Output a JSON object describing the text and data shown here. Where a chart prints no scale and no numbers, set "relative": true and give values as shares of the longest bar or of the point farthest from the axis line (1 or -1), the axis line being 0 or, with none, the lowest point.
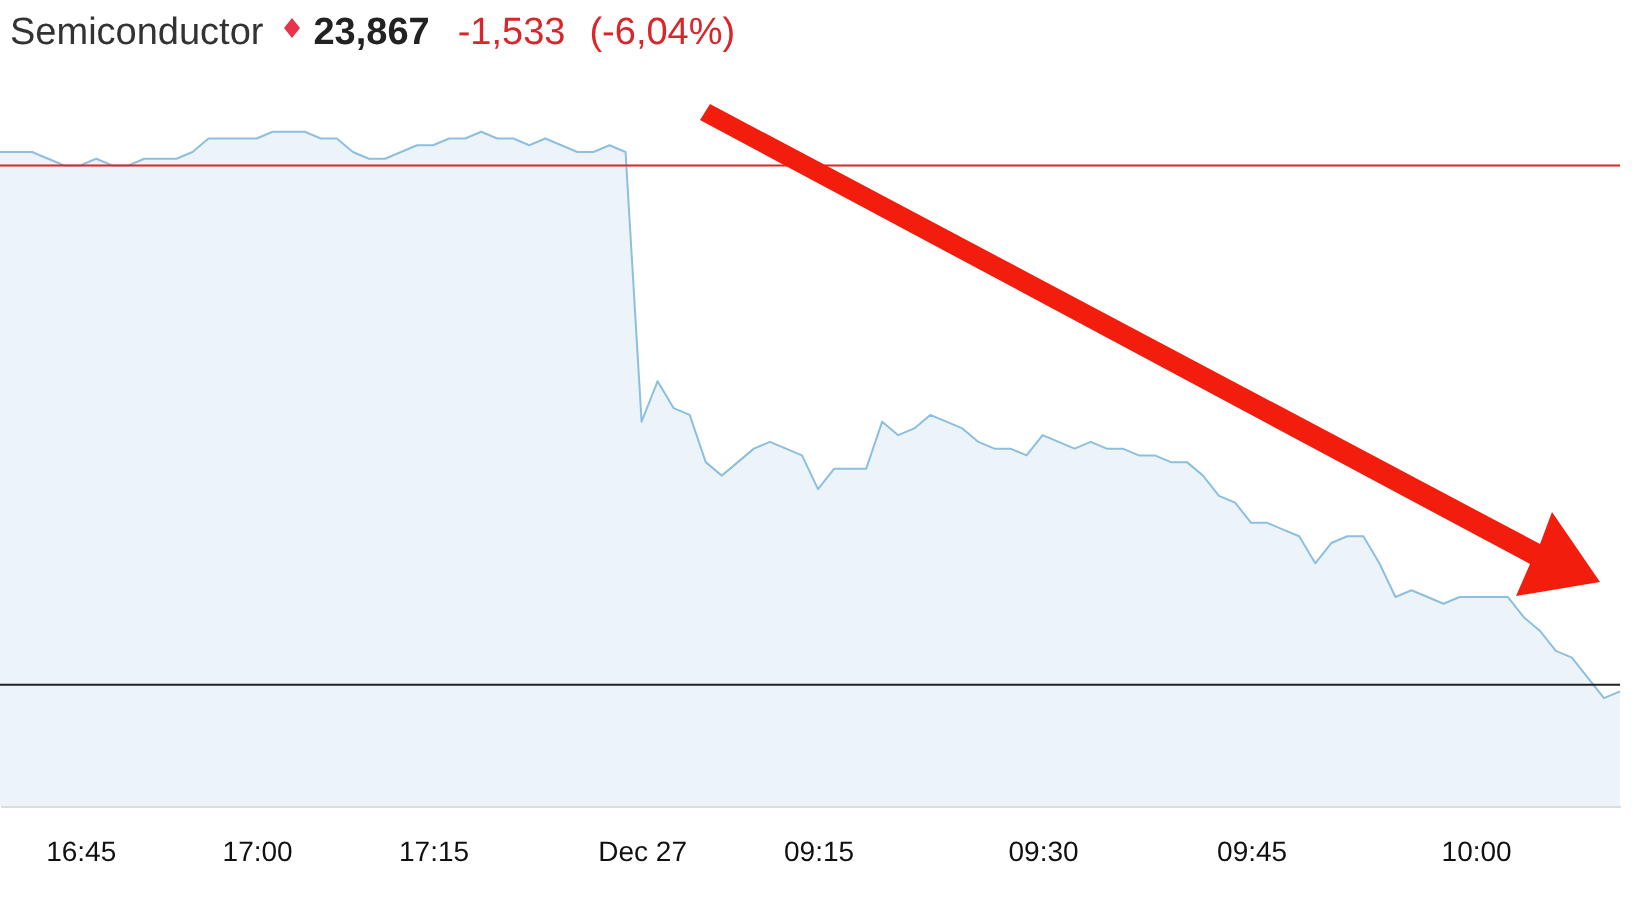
{
  "chart_data": {
    "type": "area",
    "title": "Semiconductor",
    "annotations": [
      "23,867",
      "-1,533",
      "(-6,04%)"
    ],
    "categories": [
      null,
      null,
      null,
      null,
      null,
      "16:45",
      null,
      null,
      null,
      null,
      null,
      null,
      null,
      null,
      null,
      null,
      "17:00",
      null,
      null,
      null,
      null,
      null,
      null,
      null,
      null,
      null,
      null,
      "17:15",
      null,
      null,
      null,
      null,
      null,
      null,
      null,
      null,
      null,
      null,
      null,
      null,
      "Dec 27",
      null,
      null,
      null,
      null,
      null,
      null,
      null,
      null,
      null,
      null,
      "09:15",
      null,
      null,
      null,
      null,
      null,
      null,
      null,
      null,
      null,
      null,
      null,
      null,
      null,
      "09:30",
      null,
      null,
      null,
      null,
      null,
      null,
      null,
      null,
      null,
      null,
      null,
      null,
      "09:45",
      null,
      null,
      null,
      null,
      null,
      null,
      null,
      null,
      null,
      null,
      null,
      null,
      null,
      "10:00",
      null,
      null,
      null,
      null,
      null,
      null,
      null,
      null,
      null
    ],
    "series": [
      {
        "color": "#8dbfdf",
        "values": [
          0.97,
          0.97,
          0.97,
          0.96,
          0.95,
          0.95,
          0.96,
          0.95,
          0.95,
          0.96,
          0.96,
          0.96,
          0.97,
          0.99,
          0.99,
          0.99,
          0.99,
          1.0,
          1.0,
          1.0,
          0.99,
          0.99,
          0.97,
          0.96,
          0.96,
          0.97,
          0.98,
          0.98,
          0.99,
          0.99,
          1.0,
          0.99,
          0.99,
          0.98,
          0.99,
          0.98,
          0.97,
          0.97,
          0.98,
          0.97,
          0.57,
          0.63,
          0.59,
          0.58,
          0.51,
          0.49,
          0.51,
          0.53,
          0.54,
          0.53,
          0.52,
          0.47,
          0.5,
          0.5,
          0.5,
          0.57,
          0.55,
          0.56,
          0.58,
          0.57,
          0.56,
          0.54,
          0.53,
          0.53,
          0.52,
          0.55,
          0.54,
          0.53,
          0.54,
          0.53,
          0.53,
          0.52,
          0.52,
          0.51,
          0.51,
          0.49,
          0.46,
          0.45,
          0.42,
          0.42,
          0.41,
          0.4,
          0.36,
          0.39,
          0.4,
          0.4,
          0.36,
          0.31,
          0.32,
          0.31,
          0.3,
          0.31,
          0.31,
          0.31,
          0.31,
          0.28,
          0.26,
          0.23,
          0.22,
          0.19,
          0.16,
          0.17
        ]
      }
    ],
    "relative": true,
    "grid": false,
    "ref_lines": [
      {
        "axis": "y",
        "value": 0.95,
        "color": "#d9262b"
      },
      {
        "axis": "y",
        "value": 0.18,
        "color": "#222222"
      }
    ]
  }
}
